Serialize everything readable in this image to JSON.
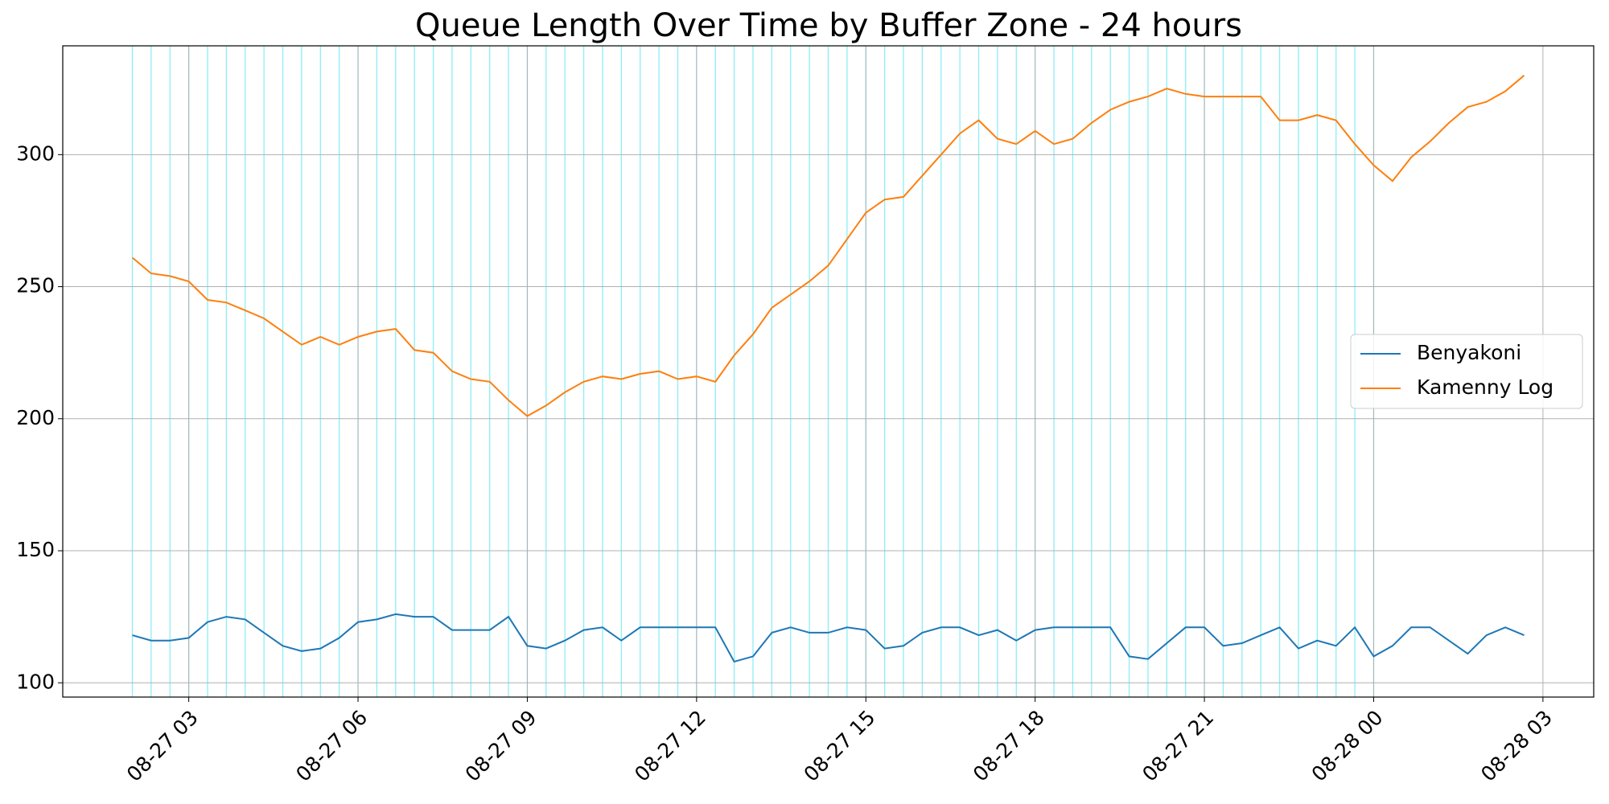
{
  "chart_data": {
    "type": "line",
    "title": "Queue Length Over Time by Buffer Zone - 24 hours",
    "x": [
      "08-27 02:00",
      "08-27 02:20",
      "08-27 02:40",
      "08-27 03:00",
      "08-27 03:20",
      "08-27 03:40",
      "08-27 04:00",
      "08-27 04:20",
      "08-27 04:40",
      "08-27 05:00",
      "08-27 05:20",
      "08-27 05:40",
      "08-27 06:00",
      "08-27 06:20",
      "08-27 06:40",
      "08-27 07:00",
      "08-27 07:20",
      "08-27 07:40",
      "08-27 08:00",
      "08-27 08:20",
      "08-27 08:40",
      "08-27 09:00",
      "08-27 09:20",
      "08-27 09:40",
      "08-27 10:00",
      "08-27 10:20",
      "08-27 10:40",
      "08-27 11:00",
      "08-27 11:20",
      "08-27 11:40",
      "08-27 12:00",
      "08-27 12:20",
      "08-27 12:40",
      "08-27 13:00",
      "08-27 13:20",
      "08-27 13:40",
      "08-27 14:00",
      "08-27 14:20",
      "08-27 14:40",
      "08-27 15:00",
      "08-27 15:20",
      "08-27 15:40",
      "08-27 16:00",
      "08-27 16:20",
      "08-27 16:40",
      "08-27 17:00",
      "08-27 17:20",
      "08-27 17:40",
      "08-27 18:00",
      "08-27 18:20",
      "08-27 18:40",
      "08-27 19:00",
      "08-27 19:20",
      "08-27 19:40",
      "08-27 20:00",
      "08-27 20:20",
      "08-27 20:40",
      "08-27 21:00",
      "08-27 21:20",
      "08-27 21:40",
      "08-27 22:00",
      "08-27 22:20",
      "08-27 22:40",
      "08-27 23:00",
      "08-27 23:20",
      "08-27 23:40",
      "08-28 00:00",
      "08-28 00:20",
      "08-28 00:40",
      "08-28 01:00",
      "08-28 01:20",
      "08-28 01:40",
      "08-28 02:00",
      "08-28 02:20",
      "08-28 02:40"
    ],
    "series": [
      {
        "name": "Benyakoni",
        "color": "#1f77b4",
        "values": [
          118,
          116,
          116,
          117,
          123,
          125,
          124,
          119,
          114,
          112,
          113,
          117,
          123,
          124,
          126,
          125,
          125,
          120,
          120,
          120,
          125,
          114,
          113,
          116,
          120,
          121,
          116,
          121,
          121,
          121,
          121,
          121,
          108,
          110,
          119,
          121,
          119,
          119,
          121,
          120,
          113,
          114,
          119,
          121,
          121,
          118,
          120,
          116,
          120,
          121,
          121,
          121,
          121,
          110,
          109,
          115,
          121,
          121,
          114,
          115,
          118,
          121,
          113,
          116,
          114,
          121,
          110,
          114,
          121,
          121,
          116,
          111,
          118,
          121,
          118
        ]
      },
      {
        "name": "Kamenny Log",
        "color": "#ff7f0e",
        "values": [
          261,
          255,
          254,
          252,
          245,
          244,
          241,
          238,
          233,
          228,
          231,
          228,
          231,
          233,
          234,
          226,
          225,
          218,
          215,
          214,
          207,
          201,
          205,
          210,
          214,
          216,
          215,
          217,
          218,
          215,
          216,
          214,
          224,
          232,
          242,
          247,
          252,
          258,
          268,
          278,
          283,
          284,
          292,
          300,
          308,
          313,
          306,
          304,
          309,
          304,
          306,
          312,
          317,
          320,
          322,
          325,
          323,
          322,
          322,
          322,
          322,
          313,
          313,
          315,
          313,
          304,
          296,
          290,
          299,
          305,
          312,
          318,
          320,
          324,
          330
        ]
      }
    ],
    "highlight_until": "08-28 00:00",
    "highlight_color": "#00d8f0",
    "xlim": [
      "08-27 00:46",
      "08-28 03:54"
    ],
    "xticks": [
      {
        "value": "08-27 03:00",
        "label": "08-27 03"
      },
      {
        "value": "08-27 06:00",
        "label": "08-27 06"
      },
      {
        "value": "08-27 09:00",
        "label": "08-27 09"
      },
      {
        "value": "08-27 12:00",
        "label": "08-27 12"
      },
      {
        "value": "08-27 15:00",
        "label": "08-27 15"
      },
      {
        "value": "08-27 18:00",
        "label": "08-27 18"
      },
      {
        "value": "08-27 21:00",
        "label": "08-27 21"
      },
      {
        "value": "08-28 00:00",
        "label": "08-28 00"
      },
      {
        "value": "08-28 03:00",
        "label": "08-28 03"
      }
    ],
    "ylim": [
      94.6,
      341.2
    ],
    "yticks": [
      100,
      150,
      200,
      250,
      300
    ],
    "grid": true,
    "legend": "center right"
  }
}
